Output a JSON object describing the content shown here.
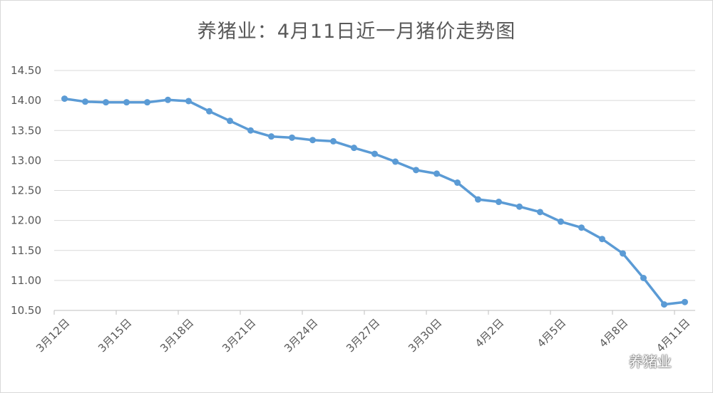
{
  "chart_data": {
    "type": "line",
    "title": "养猪业：4月11日近一月猪价走势图",
    "xlabel": "",
    "ylabel": "",
    "ylim": [
      10.5,
      14.5
    ],
    "yticks": [
      "14.50",
      "14.00",
      "13.50",
      "13.00",
      "12.50",
      "12.00",
      "11.50",
      "11.00",
      "10.50"
    ],
    "x_tick_labels": [
      "3月12日",
      "3月15日",
      "3月18日",
      "3月21日",
      "3月24日",
      "3月27日",
      "3月30日",
      "4月2日",
      "4月5日",
      "4月8日",
      "4月11日"
    ],
    "grid": true,
    "legend": "none",
    "colors": {
      "series": "#5b9bd5"
    },
    "series": [
      {
        "values": [
          14.03,
          13.98,
          13.97,
          13.97,
          13.97,
          14.01,
          13.99,
          13.82,
          13.66,
          13.5,
          13.4,
          13.38,
          13.34,
          13.32,
          13.21,
          13.11,
          12.98,
          12.84,
          12.78,
          12.63,
          12.35,
          12.31,
          12.23,
          12.14,
          11.98,
          11.88,
          11.69,
          11.45,
          11.04,
          10.6,
          10.64
        ]
      }
    ]
  },
  "watermark": {
    "text": "养猪业",
    "icon": "wechat-icon"
  }
}
